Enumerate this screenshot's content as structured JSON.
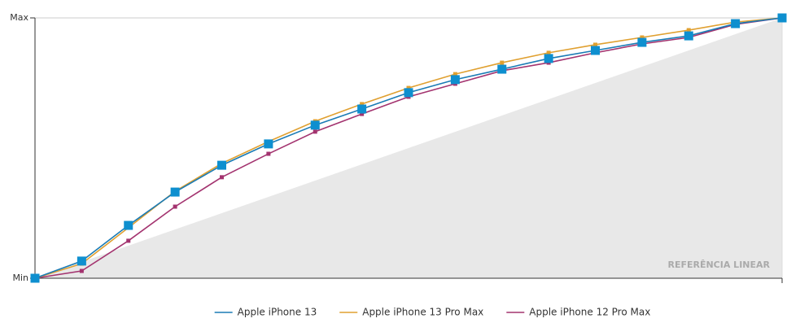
{
  "chart_data": {
    "type": "line",
    "categories": [
      null,
      null,
      null,
      null,
      null,
      null,
      null,
      null,
      null,
      null,
      null,
      null,
      null,
      null,
      null,
      null,
      null
    ],
    "ylim": [
      0,
      100
    ],
    "yticks": [
      {
        "value": 0,
        "label": "Min"
      },
      {
        "value": 100,
        "label": "Max"
      }
    ],
    "series": [
      {
        "name": "Apple iPhone 13",
        "color": "#1a7bb5",
        "marker_color": "#0e8fcf",
        "marker_size": 11,
        "values": [
          0,
          6.6,
          20.3,
          33.1,
          43.4,
          51.6,
          58.8,
          65,
          71.3,
          76.3,
          80.3,
          84.4,
          87.5,
          90.6,
          93.1,
          97.8,
          100
        ]
      },
      {
        "name": "Apple iPhone 13 Pro Max",
        "color": "#e0a030",
        "marker_color": "#e0a030",
        "marker_size": 5,
        "values": [
          0,
          5.6,
          19.4,
          33.4,
          44.1,
          52.5,
          60.3,
          66.9,
          73.1,
          78.4,
          82.8,
          86.6,
          89.7,
          92.5,
          95.3,
          98.4,
          100
        ]
      },
      {
        "name": "Apple iPhone 12 Pro Max",
        "color": "#a3336f",
        "marker_color": "#a3336f",
        "marker_size": 5,
        "values": [
          0,
          2.8,
          14.4,
          27.5,
          38.8,
          47.8,
          56.3,
          63.1,
          69.7,
          74.7,
          79.7,
          82.8,
          86.6,
          90,
          92.5,
          97.5,
          100
        ]
      }
    ],
    "reference": {
      "label": "REFERÊNCIA LINEAR",
      "color": "#e8e8e8",
      "values": [
        0,
        6.25,
        12.5,
        18.75,
        25,
        31.25,
        37.5,
        43.75,
        50,
        56.25,
        62.5,
        68.75,
        75,
        81.25,
        87.5,
        93.75,
        100
      ]
    }
  }
}
